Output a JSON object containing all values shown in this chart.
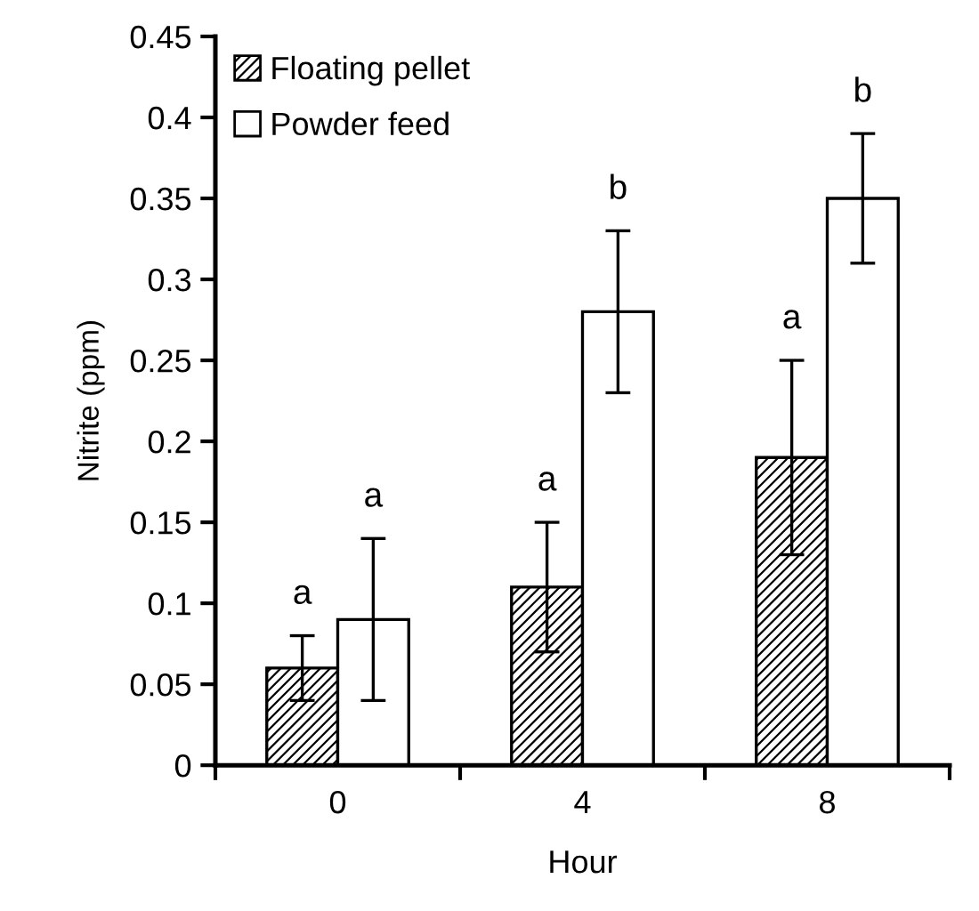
{
  "chart_data": {
    "type": "bar",
    "xlabel": "Hour",
    "ylabel": "Nitrite (ppm)",
    "categories": [
      "0",
      "4",
      "8"
    ],
    "series": [
      {
        "name": "Floating pellet",
        "color": "#000000",
        "values": [
          0.06,
          0.11,
          0.19
        ],
        "errors": [
          0.02,
          0.04,
          0.06
        ]
      },
      {
        "name": "Powder feed",
        "color": "#000000",
        "values": [
          0.09,
          0.28,
          0.35
        ],
        "errors": [
          0.05,
          0.05,
          0.04
        ]
      }
    ],
    "ylim": [
      0,
      0.45
    ],
    "yticks": [
      0,
      0.05,
      0.1,
      0.15,
      0.2,
      0.25,
      0.3,
      0.35,
      0.4,
      0.45
    ],
    "grid": false,
    "legend": "top left",
    "annotations": [
      "a",
      "a",
      "a",
      "b",
      "a",
      "b"
    ]
  }
}
